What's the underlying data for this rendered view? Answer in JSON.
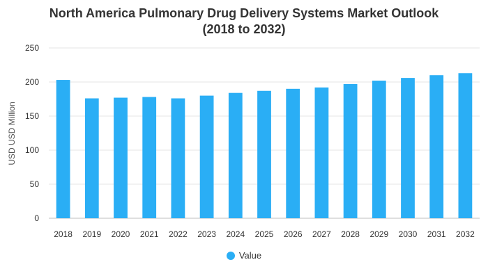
{
  "chart_data": {
    "type": "bar",
    "title_line1": "North America Pulmonary Drug Delivery Systems Market Outlook",
    "title_line2": "(2018 to 2032)",
    "ylabel": "USD USD Million",
    "xlabel": "",
    "ylim": [
      0,
      250
    ],
    "yticks": [
      0,
      50,
      100,
      150,
      200,
      250
    ],
    "grid": true,
    "legend_position": "bottom",
    "categories": [
      "2018",
      "2019",
      "2020",
      "2021",
      "2022",
      "2023",
      "2024",
      "2025",
      "2026",
      "2027",
      "2028",
      "2029",
      "2030",
      "2031",
      "2032"
    ],
    "series": [
      {
        "name": "Value",
        "color": "#2aaef5",
        "values": [
          203,
          176,
          177,
          178,
          176,
          180,
          184,
          187,
          190,
          192,
          197,
          202,
          206,
          210,
          213
        ]
      }
    ]
  }
}
